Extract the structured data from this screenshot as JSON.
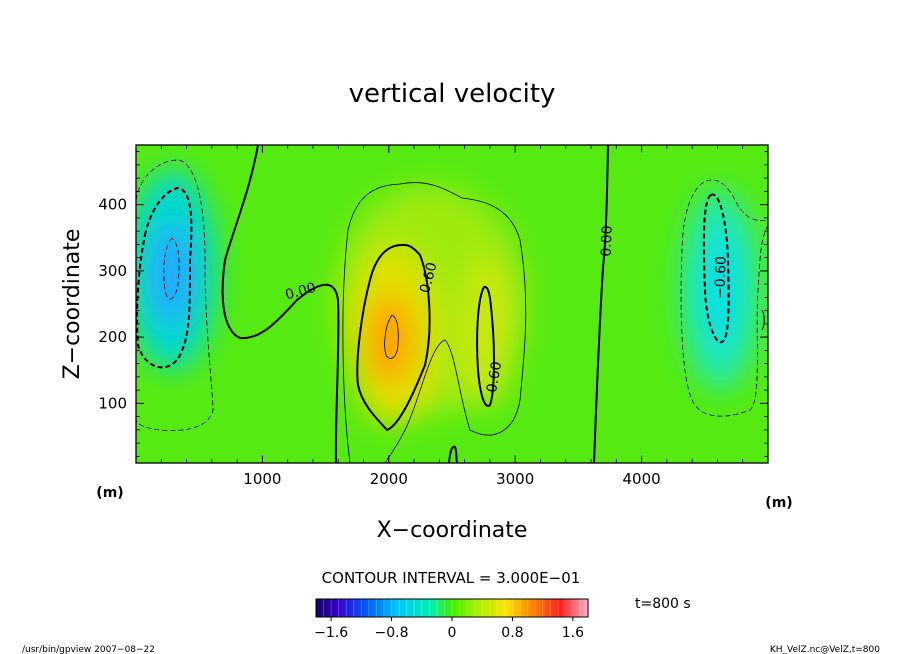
{
  "chart_data": {
    "type": "heatmap",
    "title": "vertical velocity",
    "xlabel": "X−coordinate",
    "ylabel": "Z−coordinate",
    "x_unit": "(m)",
    "y_unit": "(m)",
    "xlim": [
      0,
      5000
    ],
    "ylim": [
      10,
      490
    ],
    "x_ticks": [
      {
        "value": 1000,
        "label": "1000"
      },
      {
        "value": 2000,
        "label": "2000"
      },
      {
        "value": 3000,
        "label": "3000"
      },
      {
        "value": 4000,
        "label": "4000"
      }
    ],
    "y_ticks": [
      {
        "value": 100,
        "label": "100"
      },
      {
        "value": 200,
        "label": "200"
      },
      {
        "value": 300,
        "label": "300"
      },
      {
        "value": 400,
        "label": "400"
      }
    ],
    "contour_interval_text": "CONTOUR INTERVAL = 3.000E−01",
    "time_text": "t=800  s",
    "colorbar": {
      "range": [
        -1.8,
        1.8
      ],
      "ticks": [
        {
          "value": -1.6,
          "label": "−1.6"
        },
        {
          "value": -0.8,
          "label": "−0.8"
        },
        {
          "value": 0,
          "label": "0"
        },
        {
          "value": 0.8,
          "label": "0.8"
        },
        {
          "value": 1.6,
          "label": "1.6"
        }
      ]
    },
    "contour_labels": [
      {
        "text": "0.00",
        "x": 1300,
        "z": 270,
        "angle": -15
      },
      {
        "text": "0.60",
        "x": 2310,
        "z": 290,
        "angle": -75
      },
      {
        "text": "0.60",
        "x": 2830,
        "z": 140,
        "angle": -80
      },
      {
        "text": "0.00",
        "x": 3720,
        "z": 345,
        "angle": -88
      },
      {
        "text": "−0.60",
        "x": 4620,
        "z": 290,
        "angle": -88
      }
    ],
    "features": [
      {
        "name": "downdraft-west",
        "x": 300,
        "z": 300,
        "peak": -1.4
      },
      {
        "name": "updraft-center",
        "x": 2020,
        "z": 200,
        "peak": 1.3
      },
      {
        "name": "updraft-secondary",
        "x": 2760,
        "z": 190,
        "peak": 0.7
      },
      {
        "name": "downdraft-east",
        "x": 4560,
        "z": 290,
        "peak": -0.85
      }
    ]
  },
  "footer": {
    "left": "/usr/bin/gpview   2007−08−22",
    "right": "KH_VelZ.nc@VelZ,t=800"
  },
  "colors": {
    "background": "#ffffff",
    "axis": "#000000",
    "contour": "#000000"
  }
}
